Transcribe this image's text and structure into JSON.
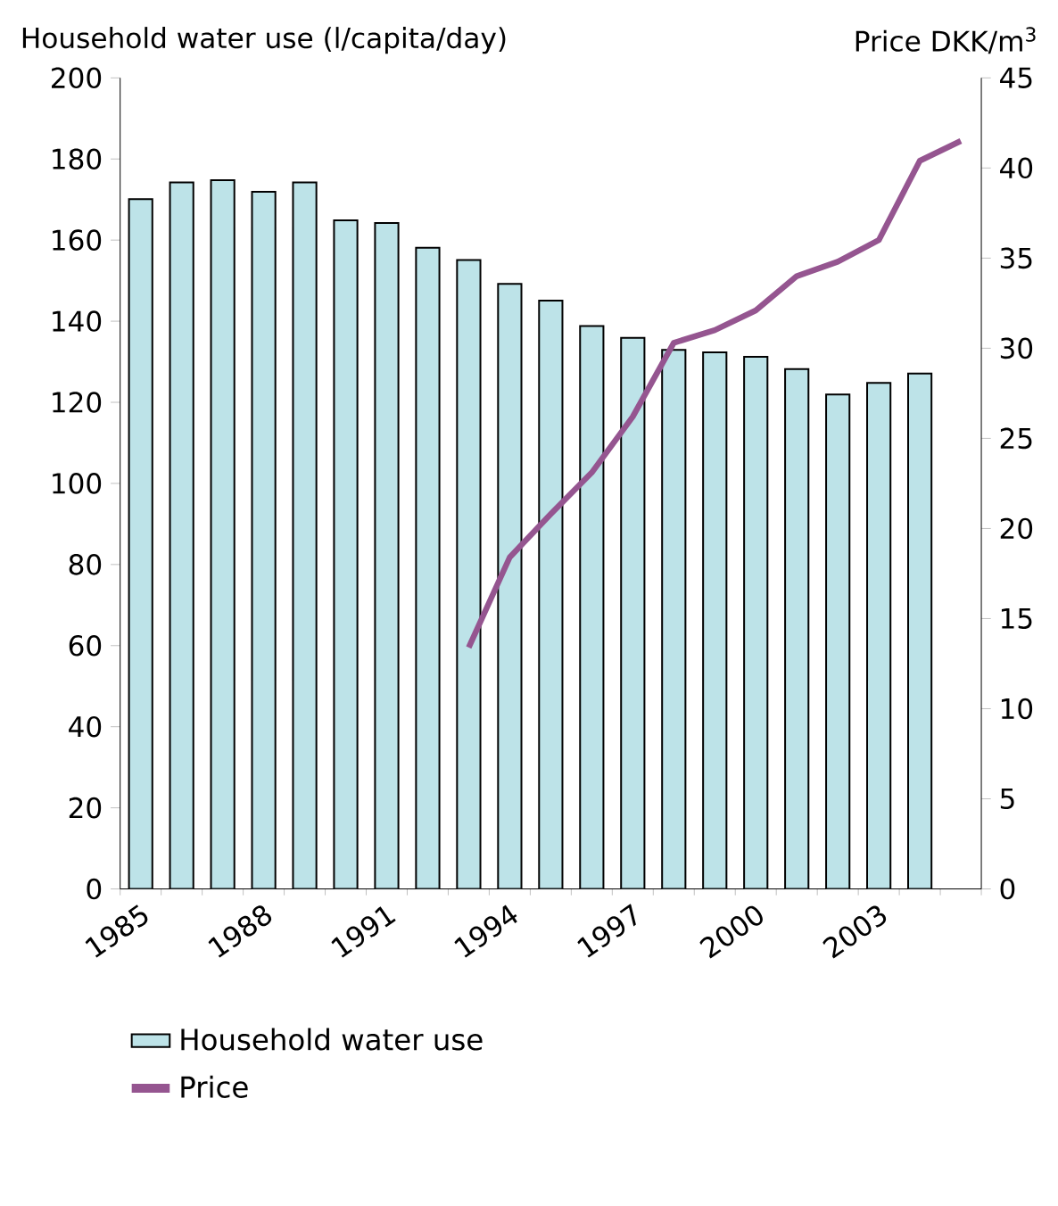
{
  "chart_data": {
    "type": "bar",
    "ylabel": "Household water use (l/capita/day)",
    "y2label": "Price DKK/m$^{3}$",
    "categories": [
      "1985",
      null,
      null,
      "1988",
      null,
      null,
      "1991",
      null,
      null,
      "1994",
      null,
      null,
      "1997",
      null,
      null,
      "2000",
      null,
      null,
      "2003",
      null,
      null
    ],
    "ylim": [
      0,
      200
    ],
    "yticks": [
      0,
      20,
      40,
      60,
      80,
      100,
      120,
      140,
      160,
      180,
      200
    ],
    "y2lim": [
      0,
      45
    ],
    "y2ticks": [
      0,
      5,
      10,
      15,
      20,
      25,
      30,
      35,
      40,
      45
    ],
    "legend": "bottom",
    "series": [
      {
        "name": "Household water use",
        "color": "#bde3e8",
        "values": [
          170.1,
          174.2,
          174.8,
          171.9,
          174.2,
          164.9,
          164.2,
          158.1,
          155.1,
          149.2,
          145.1,
          138.8,
          135.9,
          132.9,
          132.3,
          131.2,
          128.2,
          121.9,
          124.8,
          127.1,
          null
        ]
      },
      {
        "name": "Price",
        "type": "line",
        "axis": "y2",
        "color": "#955590",
        "values": [
          null,
          null,
          null,
          null,
          null,
          null,
          null,
          null,
          13.4,
          18.4,
          20.8,
          23.1,
          26.2,
          30.3,
          31.0,
          32.1,
          34.0,
          34.8,
          36.0,
          40.4,
          41.5
        ]
      }
    ]
  }
}
